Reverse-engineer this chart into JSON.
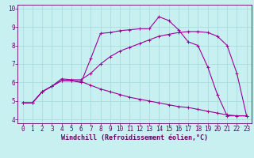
{
  "title": "",
  "xlabel": "Windchill (Refroidissement éolien,°C)",
  "bg_color": "#c8f0f0",
  "line_color": "#990099",
  "grid_color": "#aadddd",
  "axis_color": "#660066",
  "spine_color": "#660066",
  "xlim": [
    -0.5,
    23.5
  ],
  "ylim": [
    3.8,
    10.2
  ],
  "xticks": [
    0,
    1,
    2,
    3,
    4,
    5,
    6,
    7,
    8,
    9,
    10,
    11,
    12,
    13,
    14,
    15,
    16,
    17,
    18,
    19,
    20,
    21,
    22,
    23
  ],
  "yticks": [
    4,
    5,
    6,
    7,
    8,
    9,
    10
  ],
  "line1_x": [
    0,
    1,
    2,
    3,
    4,
    5,
    6,
    7,
    8,
    9,
    10,
    11,
    12,
    13,
    14,
    15,
    16,
    17,
    18,
    19,
    20,
    21,
    22,
    23
  ],
  "line1_y": [
    4.9,
    4.9,
    5.5,
    5.8,
    6.1,
    6.1,
    6.0,
    7.3,
    8.65,
    8.7,
    8.8,
    8.85,
    8.9,
    8.9,
    9.55,
    9.35,
    8.85,
    8.2,
    8.0,
    6.85,
    5.35,
    4.2,
    4.2,
    4.2
  ],
  "line2_x": [
    0,
    1,
    2,
    3,
    4,
    5,
    6,
    7,
    8,
    9,
    10,
    11,
    12,
    13,
    14,
    15,
    16,
    17,
    18,
    19,
    20,
    21,
    22,
    23
  ],
  "line2_y": [
    4.9,
    4.9,
    5.5,
    5.8,
    6.2,
    6.15,
    6.15,
    6.5,
    7.0,
    7.4,
    7.7,
    7.9,
    8.1,
    8.3,
    8.5,
    8.6,
    8.7,
    8.75,
    8.75,
    8.7,
    8.5,
    8.0,
    6.5,
    4.2
  ],
  "line3_x": [
    0,
    1,
    2,
    3,
    4,
    5,
    6,
    7,
    8,
    9,
    10,
    11,
    12,
    13,
    14,
    15,
    16,
    17,
    18,
    19,
    20,
    21,
    22,
    23
  ],
  "line3_y": [
    4.9,
    4.9,
    5.5,
    5.8,
    6.1,
    6.1,
    6.05,
    5.85,
    5.65,
    5.5,
    5.35,
    5.2,
    5.1,
    5.0,
    4.9,
    4.8,
    4.7,
    4.65,
    4.55,
    4.45,
    4.35,
    4.25,
    4.2,
    4.2
  ],
  "tick_fontsize": 5.5,
  "xlabel_fontsize": 6.0
}
